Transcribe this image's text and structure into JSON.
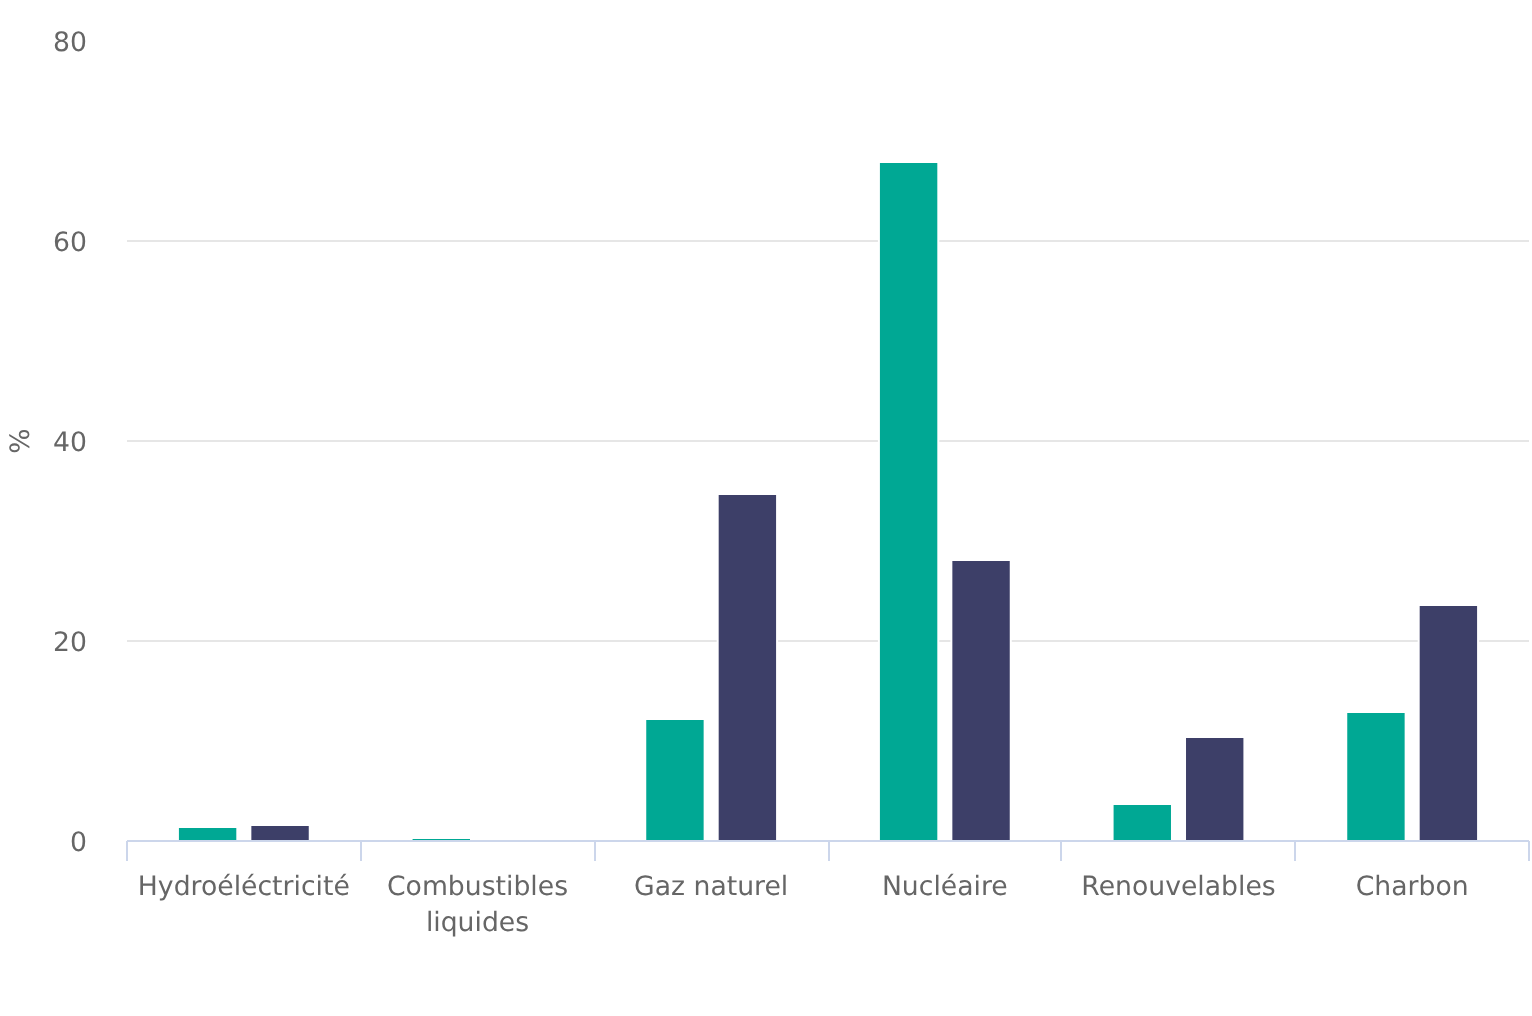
{
  "chart_data": {
    "type": "bar",
    "ylabel": "%",
    "categories": [
      "Hydroéléctricité",
      "Combustibles liquides",
      "Gaz naturel",
      "Nucléaire",
      "Renouvelables",
      "Charbon"
    ],
    "series": [
      {
        "color": "#00a894",
        "values": [
          1.4,
          0.3,
          12.2,
          67.9,
          3.7,
          12.9
        ]
      },
      {
        "color": "#3d3f68",
        "values": [
          1.6,
          null,
          34.7,
          28.1,
          10.4,
          23.6
        ]
      }
    ],
    "ylim": [
      0,
      80
    ],
    "yticks": [
      0,
      20,
      40,
      60,
      80
    ],
    "grid": "y"
  }
}
